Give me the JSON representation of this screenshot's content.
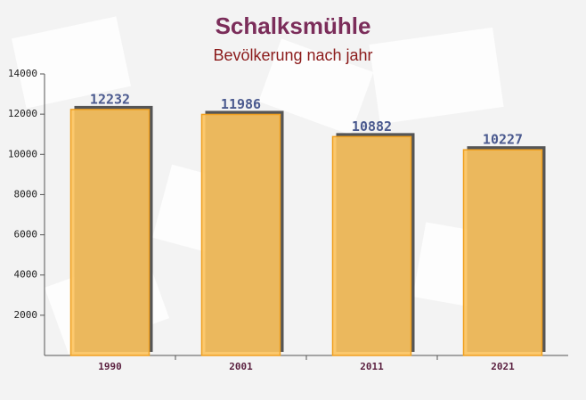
{
  "chart_data": {
    "type": "bar",
    "title": "Schalksmühle",
    "subtitle": "Bevölkerung nach jahr",
    "categories": [
      "1990",
      "2001",
      "2011",
      "2021"
    ],
    "values": [
      12232,
      11986,
      10882,
      10227
    ],
    "color": "#fcc35e",
    "ylim": [
      0,
      14000
    ],
    "yticks": [
      2000,
      4000,
      6000,
      8000,
      10000,
      12000,
      14000
    ]
  }
}
